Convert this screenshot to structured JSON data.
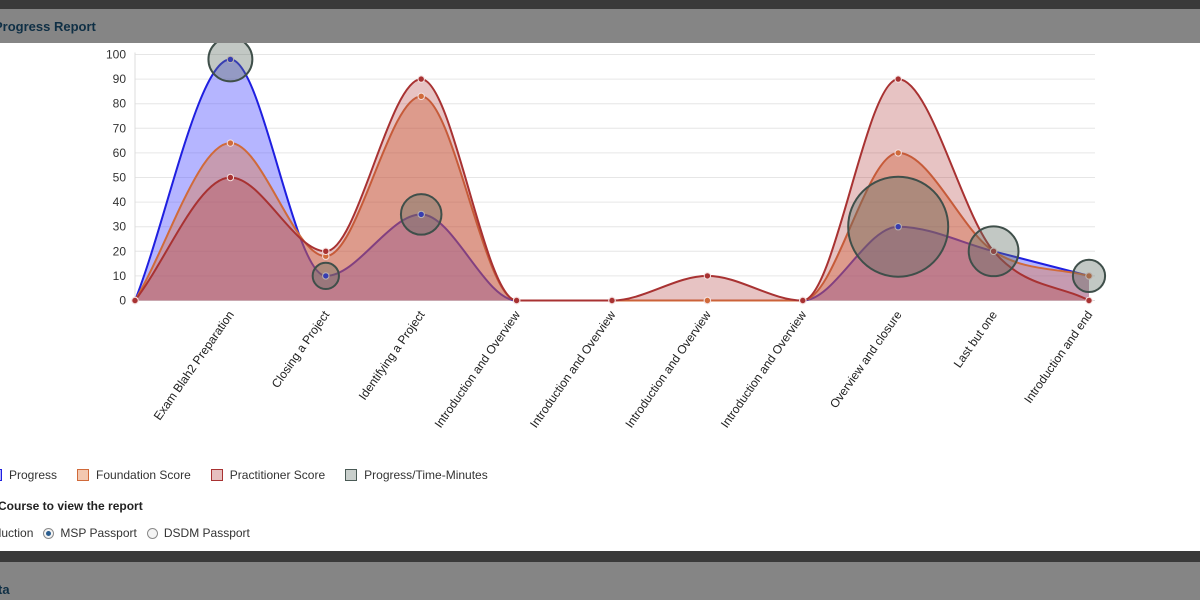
{
  "panel": {
    "title": "Progress Report"
  },
  "bottom_panel": {
    "title": "ta"
  },
  "legend": [
    {
      "label": "Progress",
      "fill": "#b0b0ff",
      "stroke": "#1f1fe0"
    },
    {
      "label": "Foundation Score",
      "fill": "#f3c8b0",
      "stroke": "#d06a3a"
    },
    {
      "label": "Practitioner Score",
      "fill": "#e6c0c0",
      "stroke": "#a83232"
    },
    {
      "label": "Progress/Time-Minutes",
      "fill": "#c9cfcc",
      "stroke": "#4a5a55"
    }
  ],
  "course_select": {
    "label": "Course to view the report",
    "options": [
      {
        "label": "roduction",
        "checked": false,
        "show_radio": false
      },
      {
        "label": "MSP Passport",
        "checked": true,
        "show_radio": true
      },
      {
        "label": "DSDM Passport",
        "checked": false,
        "show_radio": true
      }
    ]
  },
  "chart_data": {
    "type": "area",
    "categories": [
      "",
      "Exam Blah2 Preparation",
      "Closing a Project",
      "Identifying a Project",
      "Introduction and Overview",
      "Introduction and Overview",
      "Introduction and Overview",
      "Introduction and Overview",
      "Overview and closure",
      "Last but one",
      "Introduction and end"
    ],
    "ylim": [
      0,
      100
    ],
    "yticks": [
      0,
      10,
      20,
      30,
      40,
      50,
      60,
      70,
      80,
      90,
      100
    ],
    "grid": true,
    "series": [
      {
        "name": "Progress",
        "values": [
          0,
          98,
          10,
          35,
          0,
          0,
          0,
          0,
          30,
          20,
          10
        ],
        "fill": "rgba(90,90,255,0.45)",
        "stroke": "#1f1fe0"
      },
      {
        "name": "Foundation Score",
        "values": [
          0,
          64,
          18,
          83,
          0,
          0,
          0,
          0,
          60,
          20,
          10
        ],
        "fill": "rgba(222,120,70,0.42)",
        "stroke": "#d06a3a"
      },
      {
        "name": "Practitioner Score",
        "values": [
          0,
          50,
          20,
          90,
          0,
          0,
          10,
          0,
          90,
          20,
          0
        ],
        "fill": "rgba(176,55,55,0.30)",
        "stroke": "#a83232"
      }
    ],
    "bubbles": {
      "name": "Progress/Time-Minutes",
      "points": [
        {
          "index": 1,
          "y": 98,
          "size": 5
        },
        {
          "index": 2,
          "y": 10,
          "size": 1
        },
        {
          "index": 3,
          "y": 35,
          "size": 4
        },
        {
          "index": 8,
          "y": 30,
          "size": 38
        },
        {
          "index": 9,
          "y": 20,
          "size": 7
        },
        {
          "index": 10,
          "y": 10,
          "size": 2
        }
      ]
    }
  }
}
